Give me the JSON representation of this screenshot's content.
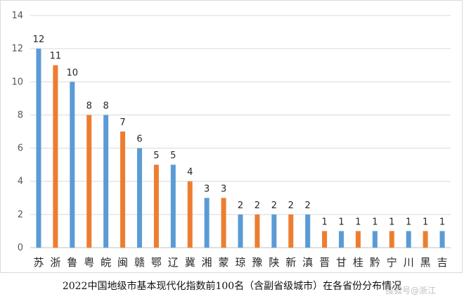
{
  "caption": "2022中国地级市基本现代化指数前100名（含副省级城市）在各省份分布情况",
  "watermark": "搜狐号@浙江",
  "chart_data": {
    "type": "bar",
    "title": "",
    "xlabel": "",
    "ylabel": "",
    "ylim": [
      0,
      14
    ],
    "yticks": [
      0,
      2,
      4,
      6,
      8,
      10,
      12,
      14
    ],
    "grid": true,
    "legend": "none",
    "categories": [
      "苏",
      "浙",
      "鲁",
      "粤",
      "皖",
      "闽",
      "赣",
      "鄂",
      "辽",
      "冀",
      "湘",
      "蒙",
      "琼",
      "豫",
      "陕",
      "新",
      "滇",
      "晋",
      "甘",
      "桂",
      "黔",
      "宁",
      "川",
      "黑",
      "吉"
    ],
    "values": [
      12,
      11,
      10,
      8,
      8,
      7,
      6,
      5,
      5,
      4,
      3,
      3,
      2,
      2,
      2,
      2,
      2,
      1,
      1,
      1,
      1,
      1,
      1,
      1,
      1
    ],
    "bar_colors": [
      "#5b9bd5",
      "#ed7d31"
    ],
    "data_labels": true
  }
}
